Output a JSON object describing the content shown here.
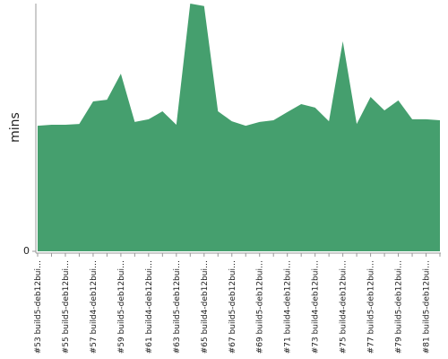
{
  "chart_data": {
    "type": "area",
    "y_label": "mins",
    "color": "#459f6e",
    "categories": [
      "#53 build5-deb12bui…",
      null,
      "#55 build5-deb12bui…",
      null,
      "#57 build4-deb12bui…",
      null,
      "#59 build5-deb12bui…",
      null,
      "#61 build4-deb12bui…",
      null,
      "#63 build5-deb12bui…",
      null,
      "#65 build4-deb12bui…",
      null,
      "#67 build5-deb12bui…",
      null,
      "#69 build5-deb12bui…",
      null,
      "#71 build4-deb12bui…",
      null,
      "#73 build4-deb12bui…",
      null,
      "#75 build4-deb12bui…",
      null,
      "#77 build5-deb12bui…",
      null,
      "#79 build5-deb12bui…",
      null,
      "#81 build5-deb12bui…",
      null
    ],
    "values": [
      50.7,
      51.1,
      51.1,
      51.4,
      60.5,
      61.2,
      71.7,
      52.2,
      53.3,
      56.5,
      51.1,
      100,
      99,
      56.5,
      52.5,
      50.7,
      52.2,
      52.9,
      56.2,
      59.4,
      58.0,
      52.5,
      84.8,
      51.4,
      62.3,
      56.9,
      60.9,
      53.3,
      53.3,
      52.9
    ],
    "ylim": [
      0,
      100
    ],
    "yticks": [
      0
    ]
  }
}
